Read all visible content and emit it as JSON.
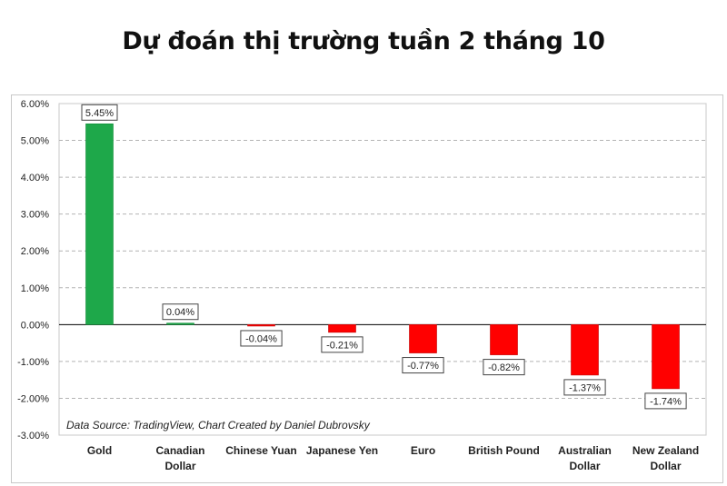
{
  "title": "Dự đoán thị trường tuần 2 tháng 10",
  "chart_data": {
    "type": "bar",
    "categories": [
      [
        "Gold"
      ],
      [
        "Canadian",
        "Dollar"
      ],
      [
        "Chinese Yuan"
      ],
      [
        "Japanese Yen"
      ],
      [
        "Euro"
      ],
      [
        "British Pound"
      ],
      [
        "Australian",
        "Dollar"
      ],
      [
        "New Zealand",
        "Dollar"
      ]
    ],
    "values": [
      5.45,
      0.04,
      -0.04,
      -0.21,
      -0.77,
      -0.82,
      -1.37,
      -1.74
    ],
    "data_labels": [
      "5.45%",
      "0.04%",
      "-0.04%",
      "-0.21%",
      "-0.77%",
      "-0.82%",
      "-1.37%",
      "-1.74%"
    ],
    "ylim": [
      -3,
      6
    ],
    "yticks": [
      6,
      5,
      4,
      3,
      2,
      1,
      0,
      -1,
      -2,
      -3
    ],
    "ytick_labels": [
      "6.00%",
      "5.00%",
      "4.00%",
      "3.00%",
      "2.00%",
      "1.00%",
      "0.00%",
      "-1.00%",
      "-2.00%",
      "-3.00%"
    ],
    "grid": "horizontal dashed",
    "colors": {
      "positive": "#1ea84a",
      "negative": "#ff0000",
      "grid": "#b4b4b4"
    },
    "annotation": "Data Source: TradingView, Chart Created by Daniel Dubrovsky"
  }
}
